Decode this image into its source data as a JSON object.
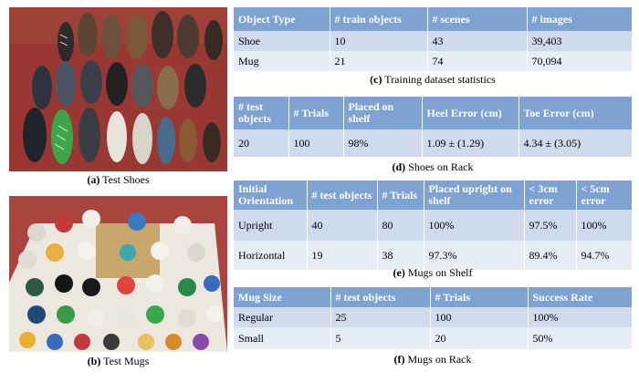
{
  "figures": {
    "shoes_caption_label": "(a)",
    "shoes_caption_text": "Test Shoes",
    "mugs_caption_label": "(b)",
    "mugs_caption_text": "Test Mugs"
  },
  "table_c": {
    "caption_label": "(c)",
    "caption_text": "Training dataset statistics",
    "headers": [
      "Object Type",
      "# train objects",
      "# scenes",
      "# images"
    ],
    "rows": [
      [
        "Shoe",
        "10",
        "43",
        "39,403"
      ],
      [
        "Mug",
        "21",
        "74",
        "70,094"
      ]
    ]
  },
  "table_d": {
    "caption_label": "(d)",
    "caption_text": "Shoes on Rack",
    "headers": [
      "# test objects",
      "# Trials",
      "Placed on shelf",
      "Heel Error (cm)",
      "Toe Error (cm)"
    ],
    "rows": [
      [
        "20",
        "100",
        "98%",
        "1.09 ± (1.29)",
        "4.34 ± (3.05)"
      ]
    ]
  },
  "table_e": {
    "caption_label": "(e)",
    "caption_text": "Mugs on Shelf",
    "headers": [
      "Initial Orientation",
      "# test objects",
      "# Trials",
      "Placed upright on shelf",
      "< 3cm error",
      "< 5cm error"
    ],
    "rows": [
      [
        "Upright",
        "40",
        "80",
        "100%",
        "97.5%",
        "100%"
      ],
      [
        "Horizontal",
        "19",
        "38",
        "97.3%",
        "89.4%",
        "94.7%"
      ]
    ]
  },
  "table_f": {
    "caption_label": "(f)",
    "caption_text": "Mugs on Rack",
    "headers": [
      "Mug Size",
      "# test objects",
      "# Trials",
      "Success Rate"
    ],
    "rows": [
      [
        "Regular",
        "25",
        "100",
        "100%"
      ],
      [
        "Small",
        "5",
        "20",
        "50%"
      ]
    ]
  },
  "colors": {
    "header_bg": "#7ea3d3",
    "row_odd": "#cfdbec",
    "row_even": "#e6edf6",
    "shoe_floor": "#9a3a34",
    "mug_floor": "#a8453e"
  }
}
